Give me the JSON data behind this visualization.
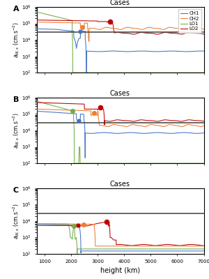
{
  "title": "Cases",
  "xlabel": "height (km)",
  "colors": {
    "CH1": "#4472c4",
    "CH2": "#ed7d31",
    "LO1": "#70ad47",
    "LO2": "#c00000"
  },
  "hline_A": 30000.0,
  "hline_B": 30000.0,
  "hline_C": 30000.0,
  "xlim": [
    700,
    7000
  ],
  "ylim": [
    100.0,
    1000000.0
  ],
  "panel_labels": [
    "A",
    "B",
    "C"
  ]
}
